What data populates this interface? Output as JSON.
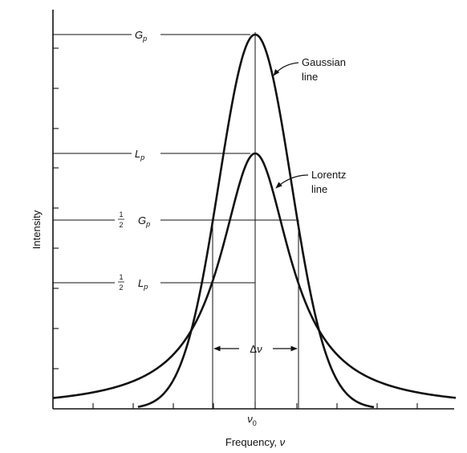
{
  "axes": {
    "y_label": "Intensity",
    "x_label": "Frequency, ",
    "x_label_symbol": "ν",
    "x_tick_symbol": "ν",
    "x_tick_subscript": "0"
  },
  "levels": {
    "gaussian_peak": {
      "letter": "G",
      "subscript": "p"
    },
    "lorentz_peak": {
      "letter": "L",
      "subscript": "p"
    },
    "half_gaussian": {
      "numerator": "1",
      "denominator": "2",
      "letter": "G",
      "subscript": "p"
    },
    "half_lorentz": {
      "numerator": "1",
      "denominator": "2",
      "letter": "L",
      "subscript": "p"
    }
  },
  "curves": {
    "gaussian": {
      "line1": "Gaussian",
      "line2": "line"
    },
    "lorentz": {
      "line1": "Lorentz",
      "line2": "line"
    }
  },
  "width_marker": {
    "delta": "Δ",
    "symbol": "ν"
  },
  "colors": {
    "ink": "#111111",
    "background": "#ffffff"
  }
}
